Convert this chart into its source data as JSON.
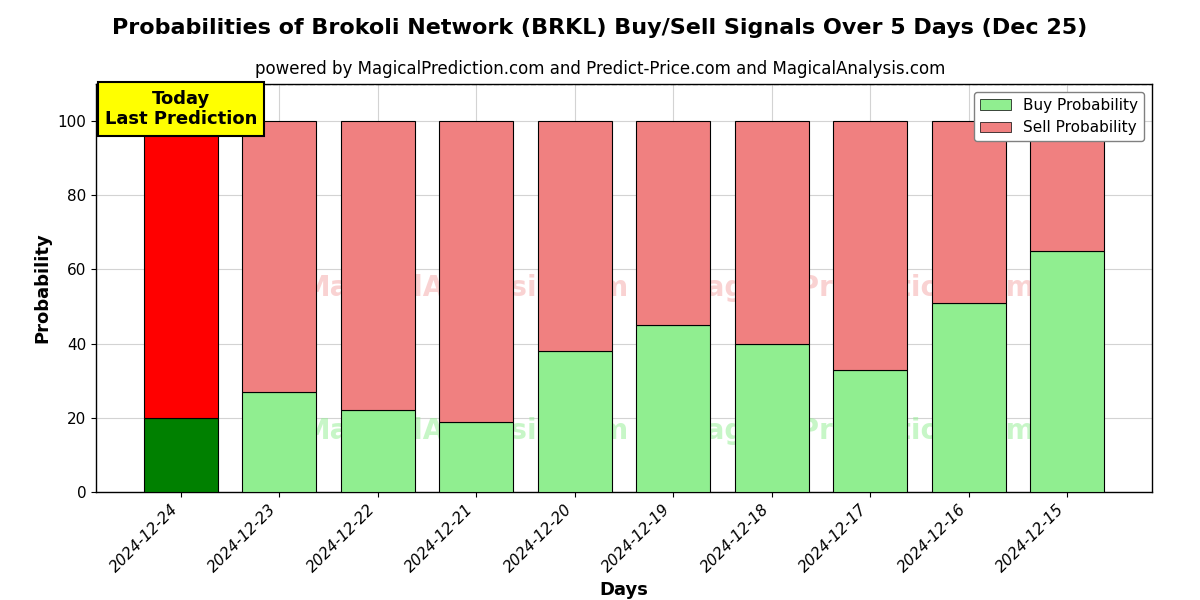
{
  "title": "Probabilities of Brokoli Network (BRKL) Buy/Sell Signals Over 5 Days (Dec 25)",
  "subtitle": "powered by MagicalPrediction.com and Predict-Price.com and MagicalAnalysis.com",
  "xlabel": "Days",
  "ylabel": "Probability",
  "categories": [
    "2024-12-24",
    "2024-12-23",
    "2024-12-22",
    "2024-12-21",
    "2024-12-20",
    "2024-12-19",
    "2024-12-18",
    "2024-12-17",
    "2024-12-16",
    "2024-12-15"
  ],
  "buy_values": [
    20,
    27,
    22,
    19,
    38,
    45,
    40,
    33,
    51,
    65
  ],
  "sell_values": [
    80,
    73,
    78,
    81,
    62,
    55,
    60,
    67,
    49,
    35
  ],
  "today_buy_color": "#008000",
  "today_sell_color": "#ff0000",
  "buy_color": "#90ee90",
  "sell_color": "#f08080",
  "today_annotation": "Today\nLast Prediction",
  "ylim": [
    0,
    110
  ],
  "yticks": [
    0,
    20,
    40,
    60,
    80,
    100
  ],
  "dashed_line_y": 110,
  "title_fontsize": 16,
  "subtitle_fontsize": 12,
  "label_fontsize": 13,
  "tick_fontsize": 11,
  "legend_fontsize": 11,
  "watermark1": "MagicalAnalysis.com",
  "watermark2": "MagicalPrediction.com"
}
